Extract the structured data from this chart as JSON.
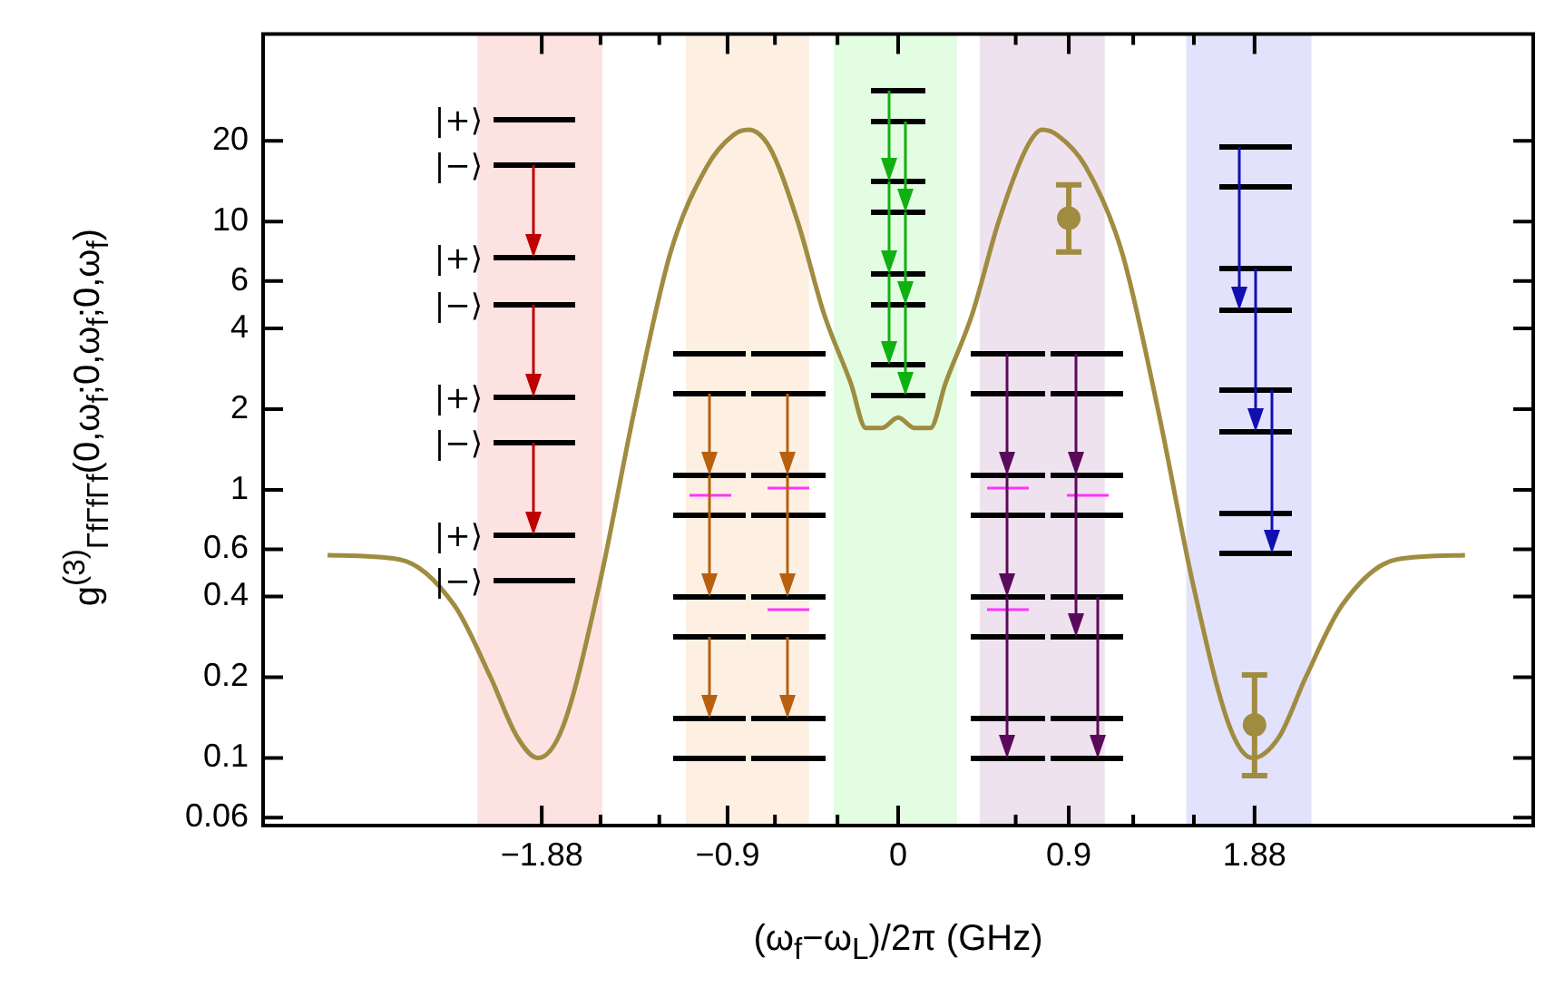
{
  "chart_data": {
    "type": "line",
    "xlabel": "(ω$_{f}$−ω$_{L}$)/2π (GHz)",
    "ylabel": "g$^{(3)}$$_{ΓfΓfΓf}$(0,ω$_{f}$;0,ω$_{f}$;0,ω$_{f}$)",
    "xlim": [
      -3.35,
      3.35
    ],
    "xticks": [
      {
        "value": -1.88,
        "label": "−1.88"
      },
      {
        "value": -1.57,
        "label": null
      },
      {
        "value": -1.26,
        "label": null
      },
      {
        "value": -0.9,
        "label": "−0.9"
      },
      {
        "value": -0.65,
        "label": null
      },
      {
        "value": -0.32,
        "label": null
      },
      0,
      {
        "value": 0.62,
        "label": null
      },
      0.9,
      {
        "value": 1.24,
        "label": null
      },
      {
        "value": 1.56,
        "label": null
      },
      1.88
    ],
    "ylim": [
      0.056,
      50
    ],
    "yticks": [
      0.06,
      0.1,
      0.2,
      0.4,
      0.6,
      1,
      2,
      4,
      6,
      10,
      20
    ],
    "log": "y",
    "grid": false,
    "legend": false,
    "series": [
      {
        "type": "line",
        "color": "#a08c40",
        "marker": "none",
        "x": [
          -3.01,
          -2.63,
          -2.34,
          -2.15,
          -2.01,
          -1.9,
          -1.77,
          -1.58,
          -1.39,
          -1.2,
          -1.01,
          -0.87,
          -0.79,
          -0.68,
          -0.53,
          -0.39,
          -0.25,
          -0.17,
          -0.086,
          0,
          0.086,
          0.17,
          0.25,
          0.39,
          0.53,
          0.68,
          0.76,
          0.84,
          0.99,
          1.18,
          1.37,
          1.56,
          1.75,
          1.87,
          2.01,
          2.15,
          2.34,
          2.63,
          2.99
        ],
        "values": [
          0.57,
          0.55,
          0.37,
          0.2,
          0.12,
          0.1,
          0.13,
          0.43,
          2,
          7.7,
          16,
          21,
          22,
          19,
          10,
          4.5,
          2.5,
          1.7,
          1.7,
          1.86,
          1.7,
          1.7,
          2.5,
          4.5,
          10,
          19,
          22,
          21,
          16,
          7.7,
          2,
          0.43,
          0.13,
          0.1,
          0.12,
          0.2,
          0.37,
          0.55,
          0.57
        ]
      },
      {
        "type": "scatter",
        "color": "#a08c40",
        "marker": "circle",
        "x": [
          0.9,
          1.88
        ],
        "values": [
          10.3,
          0.133
        ],
        "errors": [
          [
            7.7,
            13.7
          ],
          [
            0.086,
            0.204
          ]
        ]
      }
    ],
    "bands": [
      {
        "axis": "x",
        "from": -2.22,
        "to": -1.56,
        "color": "#fde2e2"
      },
      {
        "axis": "x",
        "from": -1.12,
        "to": -0.47,
        "color": "#fdf0e2"
      },
      {
        "axis": "x",
        "from": -0.34,
        "to": 0.31,
        "color": "#e2fde2"
      },
      {
        "axis": "x",
        "from": 0.43,
        "to": 1.09,
        "color": "#efe2ef"
      },
      {
        "axis": "x",
        "from": 1.52,
        "to": 2.18,
        "color": "#e2e2fc"
      }
    ],
    "annotations": [
      "|+⟩",
      "|−⟩",
      "|+⟩",
      "|−⟩",
      "|+⟩",
      "|−⟩",
      "|+⟩",
      "|−⟩"
    ]
  }
}
